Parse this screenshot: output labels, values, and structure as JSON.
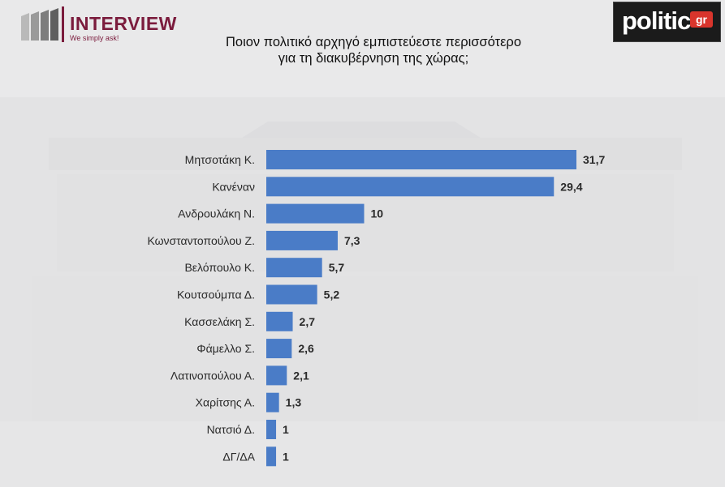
{
  "header": {
    "brand_left": "INTERVIEW",
    "brand_left_tagline": "We simply ask!",
    "brand_right": "politic",
    "brand_right_suffix": "gr",
    "title_line1": "Ποιον πολιτικό αρχηγό εμπιστεύεστε περισσότερο",
    "title_line2": "για τη διακυβέρνηση της χώρας;"
  },
  "colors": {
    "bar": "#4a7cc7",
    "brand_maroon": "#7b1c3d",
    "label": "#2a2a2a",
    "background": "#e9e9ea"
  },
  "chart_data": {
    "type": "bar",
    "orientation": "horizontal",
    "categories": [
      "Μητσοτάκη Κ.",
      "Κανέναν",
      "Ανδρουλάκη Ν.",
      "Κωνσταντοπούλου Ζ.",
      "Βελόπουλο Κ.",
      "Κουτσούμπα Δ.",
      "Κασσελάκη Σ.",
      "Φάμελλο Σ.",
      "Λατινοπούλου Α.",
      "Χαρίτσης Α.",
      "Νατσιό Δ.",
      "ΔΓ/ΔΑ"
    ],
    "values": [
      31.7,
      29.4,
      10,
      7.3,
      5.7,
      5.2,
      2.7,
      2.6,
      2.1,
      1.3,
      1,
      1
    ],
    "value_labels": [
      "31,7",
      "29,4",
      "10",
      "7,3",
      "5,7",
      "5,2",
      "2,7",
      "2,6",
      "2,1",
      "1,3",
      "1",
      "1"
    ],
    "title": "Ποιον πολιτικό αρχηγό εμπιστεύεστε περισσότερο για τη διακυβέρνηση της χώρας;",
    "xlabel": "",
    "ylabel": "",
    "xlim": [
      0,
      31.7
    ],
    "grid": false,
    "legend": "none"
  }
}
